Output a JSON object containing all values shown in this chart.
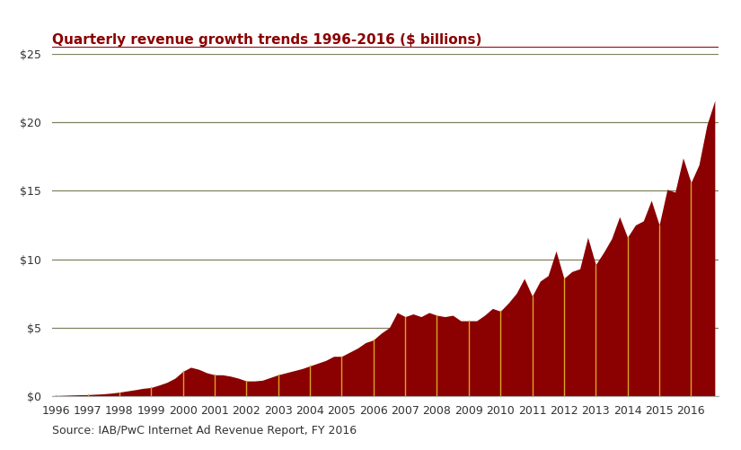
{
  "title": "Quarterly revenue growth trends 1996-2016 ($ billions)",
  "source": "Source: IAB/PwC Internet Ad Revenue Report, FY 2016",
  "fill_color": "#8B0000",
  "line_color": "#DAA520",
  "grid_color": "#808060",
  "title_color": "#8B0000",
  "background_color": "#FFFFFF",
  "ylim": [
    0,
    25
  ],
  "yticks": [
    0,
    5,
    10,
    15,
    20,
    25
  ],
  "values": [
    0.03,
    0.05,
    0.07,
    0.09,
    0.1,
    0.13,
    0.16,
    0.21,
    0.28,
    0.37,
    0.46,
    0.56,
    0.62,
    0.8,
    1.0,
    1.3,
    1.8,
    2.1,
    1.95,
    1.7,
    1.55,
    1.55,
    1.45,
    1.3,
    1.1,
    1.1,
    1.15,
    1.35,
    1.55,
    1.7,
    1.85,
    2.0,
    2.2,
    2.4,
    2.6,
    2.9,
    2.9,
    3.2,
    3.5,
    3.9,
    4.1,
    4.6,
    5.0,
    6.1,
    5.8,
    6.0,
    5.8,
    6.1,
    5.9,
    5.8,
    5.9,
    5.5,
    5.5,
    5.5,
    5.9,
    6.4,
    6.2,
    6.8,
    7.5,
    8.59,
    7.3,
    8.4,
    8.8,
    10.6,
    8.6,
    9.1,
    9.3,
    11.6,
    9.6,
    10.5,
    11.5,
    13.1,
    11.6,
    12.5,
    12.8,
    14.3,
    12.5,
    15.1,
    14.9,
    17.4,
    15.6,
    16.9,
    19.8,
    21.6
  ],
  "year_labels": [
    "1996",
    "1997",
    "1998",
    "1999",
    "2000",
    "2001",
    "2002",
    "2003",
    "2004",
    "2005",
    "2006",
    "2007",
    "2008",
    "2009",
    "2010",
    "2011",
    "2012",
    "2013",
    "2014",
    "2015",
    "2016"
  ],
  "year_positions": [
    0,
    4,
    8,
    12,
    16,
    20,
    24,
    28,
    32,
    36,
    40,
    44,
    48,
    52,
    56,
    60,
    64,
    68,
    72,
    76,
    80
  ]
}
